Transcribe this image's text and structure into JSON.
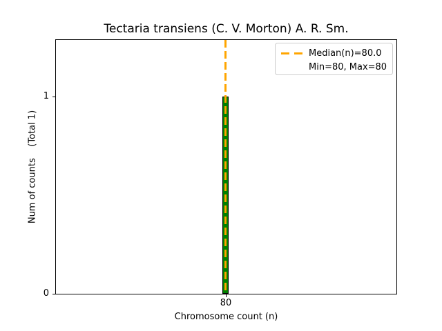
{
  "chart_data": {
    "type": "bar",
    "title": "Tectaria transiens (C. V. Morton) A. R. Sm.",
    "xlabel": "Chromosome count (n)",
    "ylabel": "Num of counts    (Total 1)",
    "categories": [
      80
    ],
    "values": [
      1
    ],
    "total_counts": 1,
    "x_tick_labels": [
      "80"
    ],
    "y_tick_labels": [
      "0",
      "1"
    ],
    "ylim": [
      0,
      1.29
    ],
    "median": 80.0,
    "min": 80,
    "max": 80,
    "grid": false,
    "legend_position": "upper right",
    "legend_items": [
      "Median(n)=80.0",
      "Min=80, Max=80"
    ],
    "colors": {
      "bar_fill": "#008000",
      "bar_edge": "#000000",
      "median_line": "#FFA500",
      "legend_border": "#cccccc",
      "text": "#000000",
      "background": "#ffffff"
    }
  }
}
